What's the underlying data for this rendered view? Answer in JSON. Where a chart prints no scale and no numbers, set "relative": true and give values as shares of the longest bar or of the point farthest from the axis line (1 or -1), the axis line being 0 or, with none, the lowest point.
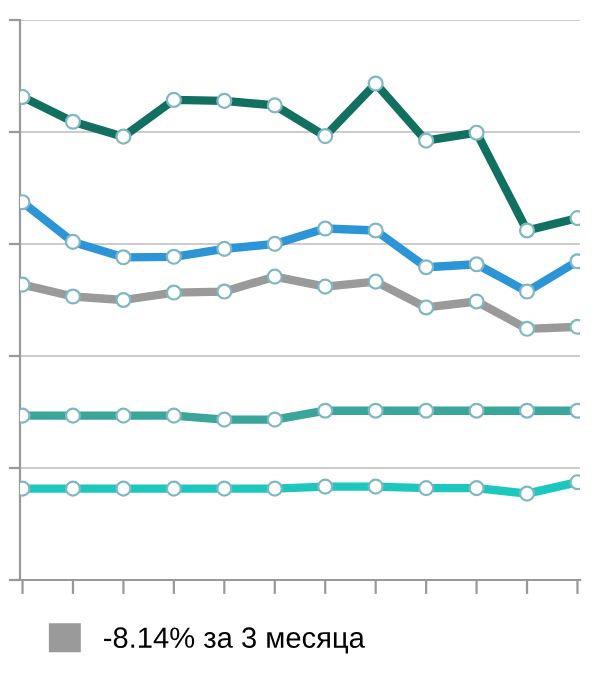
{
  "chart_data": {
    "type": "line",
    "relative": true,
    "grid": "y",
    "marker": "circle",
    "line_style": "solid",
    "legend": "bottom left",
    "categories": [
      null,
      null,
      null,
      null,
      null,
      null,
      null,
      null,
      null,
      null,
      null,
      null
    ],
    "series": [
      {
        "color": "#11705f",
        "values": [
          0.973,
          0.923,
          0.893,
          0.967,
          0.965,
          0.956,
          0.894,
          1,
          0.885,
          0.901,
          0.704,
          0.729
        ]
      },
      {
        "color": "#2b95d8",
        "values": [
          0.761,
          0.681,
          0.65,
          0.651,
          0.667,
          0.677,
          0.708,
          0.704,
          0.63,
          0.636,
          0.581,
          0.642
        ]
      },
      {
        "name": "-8.14% за 3 месяца",
        "color": "#9a9a9a",
        "values": [
          0.595,
          0.571,
          0.564,
          0.579,
          0.581,
          0.611,
          0.591,
          0.601,
          0.549,
          0.561,
          0.506,
          0.51
        ]
      },
      {
        "color": "#3aa59a",
        "values": [
          0.331,
          0.331,
          0.331,
          0.331,
          0.323,
          0.323,
          0.341,
          0.341,
          0.341,
          0.341,
          0.341,
          0.341
        ]
      },
      {
        "color": "#1cc8bd",
        "values": [
          0.184,
          0.184,
          0.184,
          0.184,
          0.184,
          0.184,
          0.188,
          0.188,
          0.185,
          0.185,
          0.174,
          0.197
        ]
      }
    ]
  }
}
